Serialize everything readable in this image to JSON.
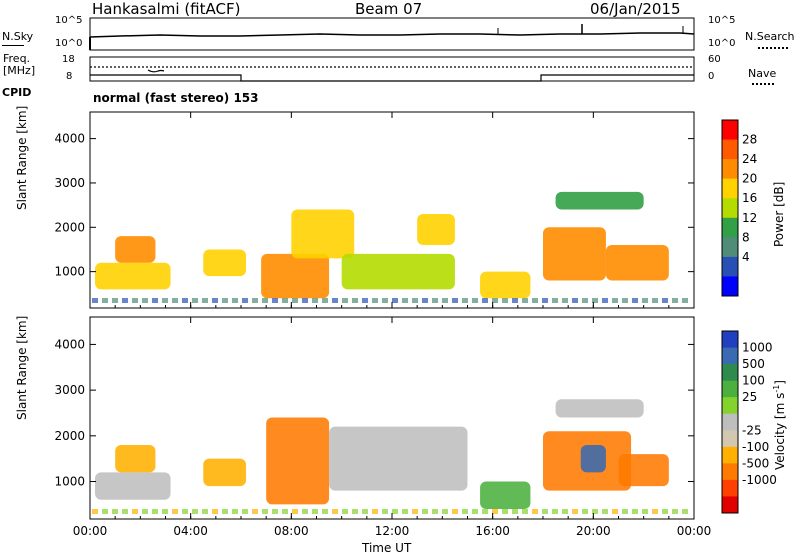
{
  "header": {
    "station": "Hankasalmi (fitACF)",
    "beam": "Beam 07",
    "date": "06/Jan/2015"
  },
  "left_labels": {
    "nsky": "N.Sky",
    "freq_line1": "Freq.",
    "freq_line2": "[MHz]",
    "cpid": "CPID"
  },
  "right_labels": {
    "nsearch": "N.Search",
    "nave": "Nave"
  },
  "top_panel_ticks": {
    "noise_left": [
      "10^5",
      "10^0"
    ],
    "noise_right": [
      "10^5",
      "10^0"
    ],
    "freq_left": [
      "18",
      "8"
    ],
    "nave_right": [
      "60",
      "0"
    ]
  },
  "cpid_text": "normal (fast stereo) 153",
  "power_colorbar": {
    "label": "Power [dB]",
    "ticks": [
      "28",
      "24",
      "20",
      "16",
      "12",
      "8",
      "4"
    ],
    "colors": [
      "#ff0000",
      "#ff5a00",
      "#ff8c00",
      "#ffd200",
      "#b4dc00",
      "#32a046",
      "#508c78",
      "#2850b4",
      "#0000ff"
    ]
  },
  "velocity_colorbar": {
    "label": "Velocity [m s",
    "label_sup": "-1",
    "label_end": "]",
    "ticks": [
      "1000",
      "500",
      "100",
      "25",
      "-25",
      "-100",
      "-500",
      "-1000"
    ],
    "colors": [
      "#2040c0",
      "#3a6ab0",
      "#2f8a4e",
      "#4cb040",
      "#84d22e",
      "#bebebe",
      "#d2c8b0",
      "#ffb000",
      "#ff7a00",
      "#ff4000",
      "#e00000"
    ]
  },
  "chart_data": [
    {
      "type": "heatmap",
      "title": "Power [dB]",
      "xlabel": "Time UT",
      "ylabel": "Slant Range [km]",
      "x_ticks": [
        "00:00",
        "04:00",
        "08:00",
        "12:00",
        "16:00",
        "20:00",
        "00:00"
      ],
      "y_ticks": [
        "1000",
        "2000",
        "3000",
        "4000"
      ],
      "xlim": [
        0,
        24
      ],
      "ylim": [
        180,
        4600
      ],
      "regions": [
        {
          "x": [
            0.2,
            3.2
          ],
          "y": [
            600,
            1200
          ],
          "value": 20
        },
        {
          "x": [
            1.0,
            2.6
          ],
          "y": [
            1200,
            1800
          ],
          "value": 24
        },
        {
          "x": [
            4.5,
            6.2
          ],
          "y": [
            900,
            1500
          ],
          "value": 20
        },
        {
          "x": [
            6.8,
            9.5
          ],
          "y": [
            400,
            1400
          ],
          "value": 24
        },
        {
          "x": [
            8.0,
            10.5
          ],
          "y": [
            1300,
            2400
          ],
          "value": 20
        },
        {
          "x": [
            10.0,
            14.5
          ],
          "y": [
            600,
            1400
          ],
          "value": 16
        },
        {
          "x": [
            13.0,
            14.5
          ],
          "y": [
            1600,
            2300
          ],
          "value": 20
        },
        {
          "x": [
            15.5,
            17.5
          ],
          "y": [
            400,
            1000
          ],
          "value": 20
        },
        {
          "x": [
            18.0,
            20.5
          ],
          "y": [
            800,
            2000
          ],
          "value": 24
        },
        {
          "x": [
            20.5,
            23.0
          ],
          "y": [
            800,
            1600
          ],
          "value": 24
        },
        {
          "x": [
            18.5,
            22.0
          ],
          "y": [
            2400,
            2800
          ],
          "value": 12
        }
      ]
    },
    {
      "type": "heatmap",
      "title": "Velocity [m s-1]",
      "xlabel": "Time UT",
      "ylabel": "Slant Range [km]",
      "x_ticks": [
        "00:00",
        "04:00",
        "08:00",
        "12:00",
        "16:00",
        "20:00",
        "00:00"
      ],
      "y_ticks": [
        "1000",
        "2000",
        "3000",
        "4000"
      ],
      "xlim": [
        0,
        24
      ],
      "ylim": [
        180,
        4600
      ],
      "regions": [
        {
          "x": [
            0.2,
            3.2
          ],
          "y": [
            600,
            1200
          ],
          "value": 0
        },
        {
          "x": [
            1.0,
            2.6
          ],
          "y": [
            1200,
            1800
          ],
          "value": -100
        },
        {
          "x": [
            4.5,
            6.2
          ],
          "y": [
            900,
            1500
          ],
          "value": -100
        },
        {
          "x": [
            7.0,
            9.5
          ],
          "y": [
            500,
            2400
          ],
          "value": -300
        },
        {
          "x": [
            9.5,
            15.0
          ],
          "y": [
            800,
            2200
          ],
          "value": 0
        },
        {
          "x": [
            15.5,
            17.5
          ],
          "y": [
            400,
            1000
          ],
          "value": 50
        },
        {
          "x": [
            18.0,
            21.5
          ],
          "y": [
            800,
            2100
          ],
          "value": -300
        },
        {
          "x": [
            19.5,
            20.5
          ],
          "y": [
            1200,
            1800
          ],
          "value": 400
        },
        {
          "x": [
            21.0,
            23.0
          ],
          "y": [
            900,
            1600
          ],
          "value": -200
        },
        {
          "x": [
            18.5,
            22.0
          ],
          "y": [
            2400,
            2800
          ],
          "value": 0
        }
      ]
    }
  ]
}
